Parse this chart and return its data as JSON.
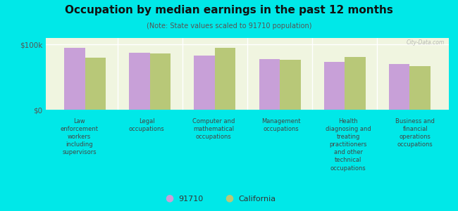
{
  "title": "Occupation by median earnings in the past 12 months",
  "subtitle": "(Note: State values scaled to 91710 population)",
  "background_color": "#00e8e8",
  "plot_bg_top": "#f0f5e0",
  "plot_bg_bottom": "#e0eecc",
  "categories": [
    "Law\nenforcement\nworkers\nincluding\nsupervisors",
    "Legal\noccupations",
    "Computer and\nmathematical\noccupations",
    "Management\noccupations",
    "Health\ndiagnosing and\ntreating\npractitioners\nand other\ntechnical\noccupations",
    "Business and\nfinancial\noperations\noccupations"
  ],
  "values_91710": [
    95000,
    87000,
    83000,
    78000,
    73000,
    70000
  ],
  "values_california": [
    80000,
    86000,
    95000,
    77000,
    81000,
    67000
  ],
  "color_91710": "#c8a0d8",
  "color_california": "#b8c878",
  "ylim": [
    0,
    110000
  ],
  "yticks": [
    0,
    100000
  ],
  "ytick_labels": [
    "$0",
    "$100k"
  ],
  "legend_labels": [
    "91710",
    "California"
  ],
  "bar_width": 0.32,
  "watermark": "City-Data.com"
}
